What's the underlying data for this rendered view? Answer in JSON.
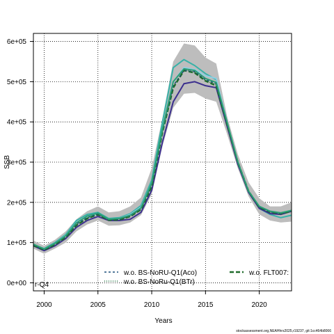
{
  "chart_data": {
    "type": "line",
    "xlabel": "Years",
    "ylabel": "SSB",
    "xlim": [
      1999,
      2023
    ],
    "ylim": [
      -20000,
      620000
    ],
    "x_ticks": [
      2000,
      2005,
      2010,
      2015,
      2020
    ],
    "y_ticks": [
      0,
      100000,
      200000,
      300000,
      400000,
      500000,
      600000
    ],
    "y_tick_labels": [
      "0e+00",
      "1e+05",
      "2e+05",
      "3e+05",
      "4e+05",
      "5e+05",
      "6e+05"
    ],
    "grid": true,
    "legend_position": "bottom",
    "x": [
      1999,
      2000,
      2001,
      2002,
      2003,
      2004,
      2005,
      2006,
      2007,
      2008,
      2009,
      2010,
      2011,
      2012,
      2013,
      2014,
      2015,
      2016,
      2017,
      2018,
      2019,
      2020,
      2021,
      2022,
      2023
    ],
    "band": {
      "color": "#bdbdbd",
      "lower": [
        85000,
        72000,
        85000,
        100000,
        128000,
        145000,
        155000,
        142000,
        143000,
        150000,
        168000,
        220000,
        340000,
        435000,
        470000,
        472000,
        458000,
        450000,
        370000,
        285000,
        215000,
        170000,
        155000,
        150000,
        152000
      ],
      "upper": [
        105000,
        92000,
        107000,
        128000,
        158000,
        178000,
        190000,
        175000,
        178000,
        190000,
        212000,
        285000,
        410000,
        550000,
        595000,
        590000,
        560000,
        545000,
        415000,
        320000,
        250000,
        210000,
        190000,
        190000,
        200000
      ]
    },
    "series": [
      {
        "color": "#38b2a8",
        "width": 2,
        "dash": "",
        "values": [
          95000,
          85000,
          100000,
          120000,
          155000,
          170000,
          175000,
          160000,
          162000,
          172000,
          192000,
          255000,
          400000,
          535000,
          555000,
          540000,
          520000,
          505000,
          400000,
          300000,
          225000,
          185000,
          170000,
          162000,
          168000
        ]
      },
      {
        "color": "#8ecfe3",
        "width": 2,
        "dash": "",
        "values": [
          95000,
          84000,
          98000,
          118000,
          150000,
          165000,
          172000,
          158000,
          160000,
          170000,
          188000,
          248000,
          380000,
          500000,
          535000,
          530000,
          515000,
          508000,
          400000,
          300000,
          228000,
          190000,
          178000,
          172000,
          178000
        ]
      },
      {
        "color": "#3b2f8e",
        "width": 2,
        "dash": "",
        "values": [
          92000,
          80000,
          92000,
          110000,
          138000,
          155000,
          165000,
          155000,
          155000,
          158000,
          175000,
          230000,
          350000,
          450000,
          495000,
          500000,
          490000,
          485000,
          390000,
          295000,
          225000,
          185000,
          172000,
          170000,
          178000
        ]
      },
      {
        "name": "w.o. FLT007:",
        "color": "#1f6b2a",
        "width": 2.5,
        "dash": "6,3",
        "values": [
          93000,
          82000,
          95000,
          113000,
          143000,
          160000,
          170000,
          156000,
          157000,
          165000,
          182000,
          240000,
          375000,
          485000,
          528000,
          522000,
          502000,
          490000,
          395000,
          300000,
          228000,
          188000,
          176000,
          172000,
          178000
        ]
      },
      {
        "name": "w.o. BS-NoRU-Q1(Aco)",
        "color": "#1a4d7a",
        "width": 1.5,
        "dash": "3,3",
        "values": [
          94000,
          83000,
          97000,
          115000,
          146000,
          162000,
          171000,
          157000,
          158000,
          166000,
          184000,
          244000,
          378000,
          490000,
          528000,
          525000,
          505000,
          495000,
          398000,
          300000,
          228000,
          188000,
          176000,
          172000,
          178000
        ]
      },
      {
        "name": "w.o. BS-NoRu-Q1(BTr)",
        "color": "#1a6b3a",
        "width": 1.5,
        "dash": "1,2",
        "values": [
          94000,
          82000,
          96000,
          114000,
          144000,
          161000,
          170000,
          156000,
          157000,
          165000,
          183000,
          242000,
          377000,
          488000,
          530000,
          523000,
          503000,
          492000,
          396000,
          300000,
          228000,
          188000,
          176000,
          172000,
          178000
        ]
      },
      {
        "color": "#2a9d74",
        "width": 2,
        "dash": "",
        "values": [
          96000,
          84000,
          98000,
          117000,
          149000,
          166000,
          173000,
          158000,
          160000,
          168000,
          186000,
          248000,
          382000,
          500000,
          532000,
          528000,
          508000,
          498000,
          400000,
          301000,
          228000,
          190000,
          178000,
          174000,
          180000
        ]
      }
    ],
    "legend": [
      {
        "label": "w.o. BS-NoRU-Q1(Aco)",
        "series_index": 4
      },
      {
        "label": "w.o. BS-NoRu-Q1(BTr)",
        "series_index": 5
      },
      {
        "label": "w.o. FLT007:",
        "series_index": 3
      }
    ],
    "clipped_label": "r-Q4"
  },
  "footer_text": "stockassessment.org,NEAHhrs2025,r19237, git:1cc464b8066"
}
